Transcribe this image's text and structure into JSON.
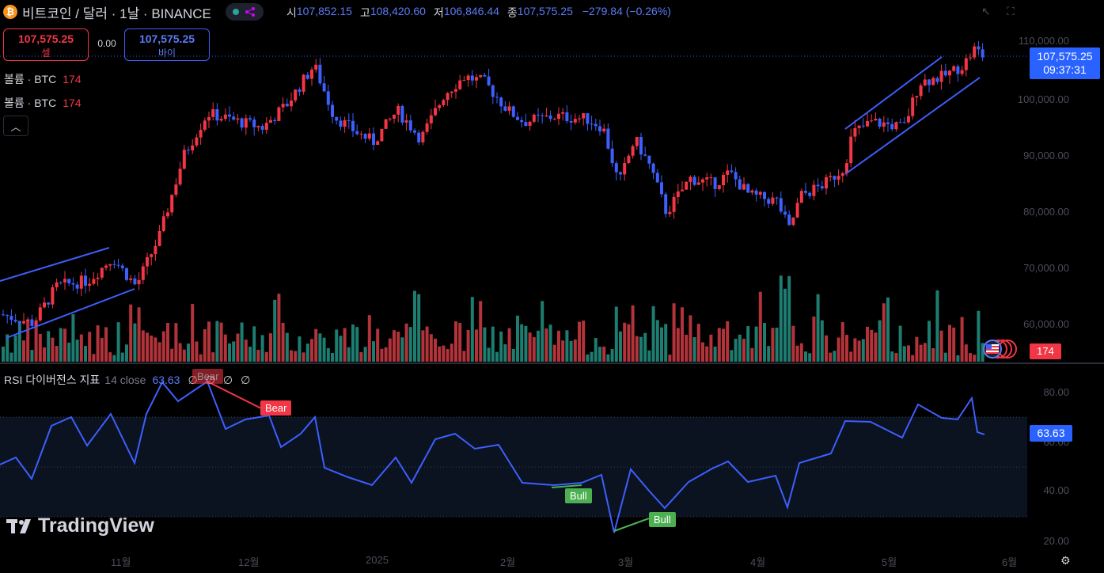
{
  "header": {
    "coin_symbol": "₿",
    "title": "비트코인 / 달러 · 1날 · BINANCE",
    "ohlc": [
      {
        "label": "시",
        "value": "107,852.15"
      },
      {
        "label": "고",
        "value": "108,420.60"
      },
      {
        "label": "저",
        "value": "106,846.44"
      },
      {
        "label": "종",
        "value": "107,575.25"
      }
    ],
    "change": "−279.84 (−0.26%)"
  },
  "trade": {
    "sell_price": "107,575.25",
    "sell_label": "셀",
    "spread": "0.00",
    "buy_price": "107,575.25",
    "buy_label": "바이"
  },
  "volume_legend": [
    {
      "label": "볼륨 · BTC",
      "value": "174"
    },
    {
      "label": "볼륨 · BTC",
      "value": "174"
    }
  ],
  "price_axis": [
    "110,000.00",
    "100,000.00",
    "90,000.00",
    "80,000.00",
    "70,000.00",
    "60,000.00"
  ],
  "current_price": {
    "value": "107,575.25",
    "countdown": "09:37:31"
  },
  "volume_tag": "174",
  "rsi": {
    "title": "RSI 다이버전스 지표",
    "params": "14 close",
    "value": "63.63",
    "na_marks": [
      "∅",
      "∅",
      "∅",
      "∅"
    ],
    "axis": [
      "80.00",
      "60.00",
      "40.00",
      "20.00"
    ],
    "labels": {
      "bear": "Bear",
      "bull": "Bull"
    }
  },
  "time_axis": [
    "11월",
    "12월",
    "2025",
    "2월",
    "3월",
    "4월",
    "5월",
    "6월"
  ],
  "logo_text": "TradingView",
  "colors": {
    "up": "#f23645",
    "down": "#3d5ffe",
    "accent": "#2962ff",
    "rsi_line": "#3d5ffe"
  }
}
